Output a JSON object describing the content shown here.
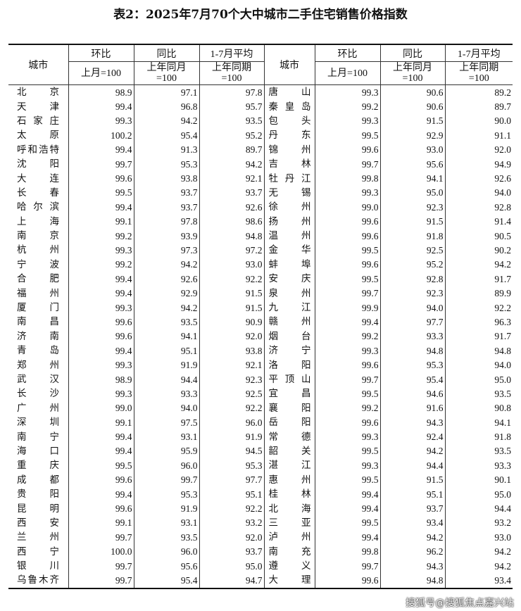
{
  "title": "表2：2025年7月70个大中城市二手住宅销售价格指数",
  "headers": {
    "city": "城市",
    "mom": "环比",
    "yoy": "同比",
    "avg": "1-7月平均",
    "mom_base": "上月=100",
    "yoy_base_1": "上年同月",
    "yoy_base_2": "=100",
    "avg_base_1": "上年同期",
    "avg_base_2": "=100"
  },
  "left_rows": [
    [
      "北京",
      "98.9",
      "97.1",
      "97.8"
    ],
    [
      "天津",
      "99.4",
      "96.8",
      "95.7"
    ],
    [
      "石家庄",
      "99.3",
      "94.2",
      "93.5"
    ],
    [
      "太原",
      "100.2",
      "95.4",
      "95.2"
    ],
    [
      "呼和浩特",
      "99.4",
      "91.3",
      "89.7"
    ],
    [
      "沈阳",
      "99.7",
      "95.3",
      "94.2"
    ],
    [
      "大连",
      "99.6",
      "93.8",
      "92.1"
    ],
    [
      "长春",
      "99.5",
      "93.7",
      "93.7"
    ],
    [
      "哈尔滨",
      "99.4",
      "93.7",
      "92.6"
    ],
    [
      "上海",
      "99.1",
      "97.8",
      "98.6"
    ],
    [
      "南京",
      "99.2",
      "93.9",
      "94.8"
    ],
    [
      "杭州",
      "99.3",
      "97.3",
      "97.2"
    ],
    [
      "宁波",
      "99.2",
      "94.2",
      "93.0"
    ],
    [
      "合肥",
      "99.4",
      "92.6",
      "92.2"
    ],
    [
      "福州",
      "99.4",
      "92.9",
      "91.5"
    ],
    [
      "厦门",
      "99.3",
      "94.2",
      "91.5"
    ],
    [
      "南昌",
      "99.6",
      "93.5",
      "90.9"
    ],
    [
      "济南",
      "99.6",
      "94.1",
      "92.0"
    ],
    [
      "青岛",
      "99.4",
      "95.1",
      "93.8"
    ],
    [
      "郑州",
      "99.3",
      "91.9",
      "92.1"
    ],
    [
      "武汉",
      "98.9",
      "94.4",
      "92.3"
    ],
    [
      "长沙",
      "99.3",
      "93.3",
      "92.5"
    ],
    [
      "广州",
      "99.0",
      "94.0",
      "92.2"
    ],
    [
      "深圳",
      "99.1",
      "97.5",
      "96.0"
    ],
    [
      "南宁",
      "99.4",
      "93.1",
      "91.9"
    ],
    [
      "海口",
      "99.4",
      "95.9",
      "94.5"
    ],
    [
      "重庆",
      "99.5",
      "96.0",
      "95.3"
    ],
    [
      "成都",
      "99.6",
      "99.7",
      "97.7"
    ],
    [
      "贵阳",
      "99.4",
      "95.3",
      "95.1"
    ],
    [
      "昆明",
      "99.6",
      "91.9",
      "92.2"
    ],
    [
      "西安",
      "99.1",
      "93.1",
      "93.2"
    ],
    [
      "兰州",
      "99.7",
      "93.5",
      "92.0"
    ],
    [
      "西宁",
      "100.0",
      "96.0",
      "93.7"
    ],
    [
      "银川",
      "99.7",
      "95.6",
      "95.0"
    ],
    [
      "乌鲁木齐",
      "99.7",
      "95.4",
      "94.7"
    ]
  ],
  "right_rows": [
    [
      "唐山",
      "99.3",
      "90.6",
      "89.2"
    ],
    [
      "秦皇岛",
      "99.2",
      "90.6",
      "89.7"
    ],
    [
      "包头",
      "99.3",
      "91.5",
      "90.0"
    ],
    [
      "丹东",
      "99.5",
      "92.9",
      "91.1"
    ],
    [
      "锦州",
      "99.6",
      "93.0",
      "92.0"
    ],
    [
      "吉林",
      "99.7",
      "95.6",
      "94.9"
    ],
    [
      "牡丹江",
      "99.8",
      "94.1",
      "92.6"
    ],
    [
      "无锡",
      "99.3",
      "95.0",
      "94.0"
    ],
    [
      "徐州",
      "99.0",
      "92.3",
      "92.8"
    ],
    [
      "扬州",
      "99.6",
      "91.5",
      "91.4"
    ],
    [
      "温州",
      "99.6",
      "91.8",
      "90.5"
    ],
    [
      "金华",
      "99.5",
      "92.5",
      "90.2"
    ],
    [
      "蚌埠",
      "99.6",
      "95.2",
      "94.2"
    ],
    [
      "安庆",
      "99.5",
      "92.8",
      "91.7"
    ],
    [
      "泉州",
      "99.7",
      "92.3",
      "89.9"
    ],
    [
      "九江",
      "99.9",
      "94.0",
      "92.2"
    ],
    [
      "赣州",
      "99.4",
      "97.7",
      "96.3"
    ],
    [
      "烟台",
      "99.2",
      "93.3",
      "91.7"
    ],
    [
      "济宁",
      "99.3",
      "94.8",
      "94.8"
    ],
    [
      "洛阳",
      "99.6",
      "95.3",
      "94.0"
    ],
    [
      "平顶山",
      "99.7",
      "95.4",
      "95.0"
    ],
    [
      "宜昌",
      "99.5",
      "94.6",
      "93.5"
    ],
    [
      "襄阳",
      "99.2",
      "91.6",
      "90.8"
    ],
    [
      "岳阳",
      "99.6",
      "94.3",
      "94.1"
    ],
    [
      "常德",
      "99.3",
      "92.4",
      "91.8"
    ],
    [
      "韶关",
      "99.5",
      "94.2",
      "93.5"
    ],
    [
      "湛江",
      "99.3",
      "94.4",
      "93.3"
    ],
    [
      "惠州",
      "99.5",
      "91.5",
      "90.1"
    ],
    [
      "桂林",
      "99.4",
      "95.1",
      "95.0"
    ],
    [
      "北海",
      "99.4",
      "93.7",
      "94.4"
    ],
    [
      "三亚",
      "99.5",
      "93.4",
      "93.2"
    ],
    [
      "泸州",
      "99.4",
      "94.2",
      "93.0"
    ],
    [
      "南充",
      "99.8",
      "96.2",
      "94.2"
    ],
    [
      "遵义",
      "99.7",
      "94.3",
      "94.2"
    ],
    [
      "大理",
      "99.6",
      "94.8",
      "93.4"
    ]
  ],
  "watermark": "搜狐号@搜狐焦点嘉兴站"
}
